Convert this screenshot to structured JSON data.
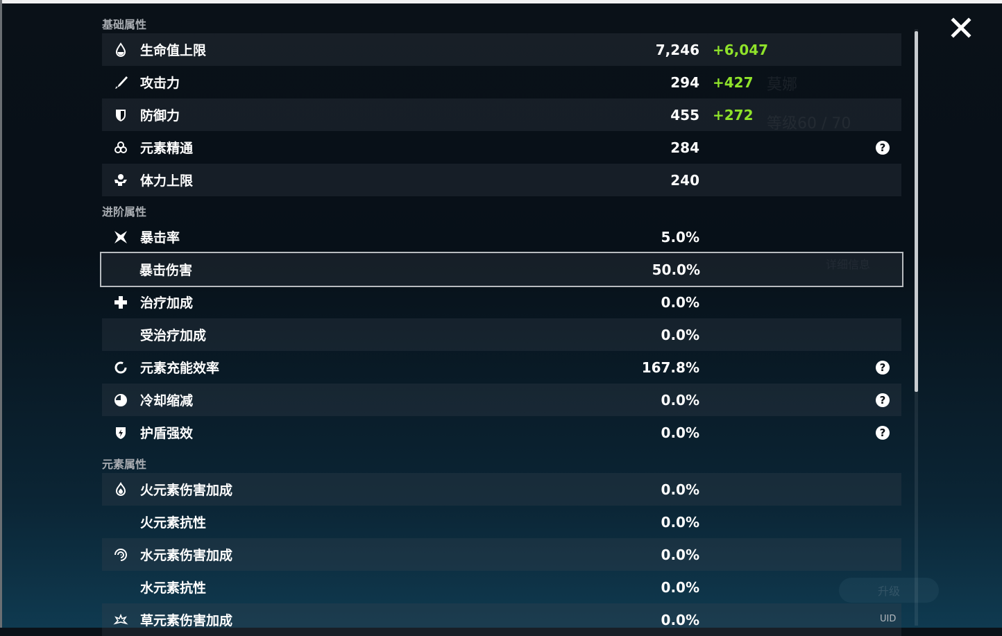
{
  "background": {
    "character_name": "莫娜",
    "level": "等级60 / 70",
    "details_button": "详细信息",
    "upgrade_button": "升级",
    "uid": "UID"
  },
  "colors": {
    "bonus": "#8fe22a",
    "selected_outline": "#b8bcc0"
  },
  "sections": [
    {
      "title": "基础属性",
      "rows": [
        {
          "icon": "hp-drop-icon",
          "label": "生命值上限",
          "value": "7,246",
          "bonus": "+6,047"
        },
        {
          "icon": "sword-icon",
          "label": "攻击力",
          "value": "294",
          "bonus": "+427"
        },
        {
          "icon": "shield-icon",
          "label": "防御力",
          "value": "455",
          "bonus": "+272"
        },
        {
          "icon": "elemental-mastery-icon",
          "label": "元素精通",
          "value": "284",
          "help": true
        },
        {
          "icon": "stamina-icon",
          "label": "体力上限",
          "value": "240"
        }
      ]
    },
    {
      "title": "进阶属性",
      "rows": [
        {
          "icon": "crit-rate-icon",
          "label": "暴击率",
          "value": "5.0%"
        },
        {
          "icon": "",
          "label": "暴击伤害",
          "value": "50.0%",
          "selected": true
        },
        {
          "icon": "healing-cross-icon",
          "label": "治疗加成",
          "value": "0.0%"
        },
        {
          "icon": "",
          "label": "受治疗加成",
          "value": "0.0%"
        },
        {
          "icon": "energy-recharge-icon",
          "label": "元素充能效率",
          "value": "167.8%",
          "help": true
        },
        {
          "icon": "cooldown-icon",
          "label": "冷却缩减",
          "value": "0.0%",
          "help": true
        },
        {
          "icon": "shield-strength-icon",
          "label": "护盾强效",
          "value": "0.0%",
          "help": true
        }
      ]
    },
    {
      "title": "元素属性",
      "rows": [
        {
          "icon": "pyro-icon",
          "label": "火元素伤害加成",
          "value": "0.0%"
        },
        {
          "icon": "",
          "label": "火元素抗性",
          "value": "0.0%"
        },
        {
          "icon": "hydro-icon",
          "label": "水元素伤害加成",
          "value": "0.0%"
        },
        {
          "icon": "",
          "label": "水元素抗性",
          "value": "0.0%"
        },
        {
          "icon": "dendro-icon",
          "label": "草元素伤害加成",
          "value": "0.0%"
        }
      ]
    }
  ]
}
